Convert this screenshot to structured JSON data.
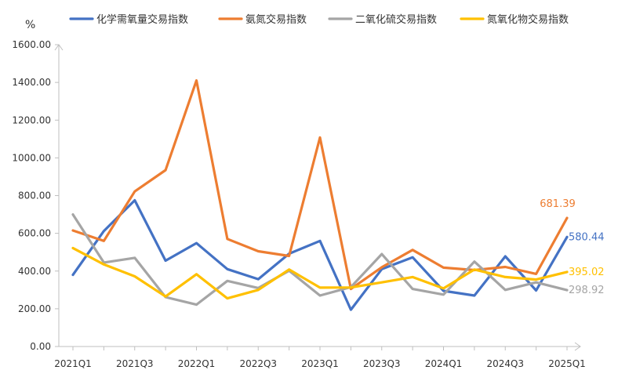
{
  "chart_data": {
    "type": "line",
    "unit_label": "%",
    "x": [
      "2021Q1",
      "2021Q2",
      "2021Q3",
      "2021Q4",
      "2022Q1",
      "2022Q2",
      "2022Q3",
      "2022Q4",
      "2023Q1",
      "2023Q2",
      "2023Q3",
      "2023Q4",
      "2024Q1",
      "2024Q2",
      "2024Q3",
      "2024Q4",
      "2025Q1"
    ],
    "x_tick_labels": [
      "2021Q1",
      "2021Q3",
      "2022Q1",
      "2022Q3",
      "2023Q1",
      "2023Q3",
      "2024Q1",
      "2024Q3",
      "2025Q1"
    ],
    "y_ticks": [
      "0.00",
      "200.00",
      "400.00",
      "600.00",
      "800.00",
      "1000.00",
      "1200.00",
      "1400.00",
      "1600.00"
    ],
    "ylim": [
      0,
      1600
    ],
    "grid": false,
    "legend_position": "top",
    "series": [
      {
        "name": "化学需氧量交易指数",
        "color": "#4472C4",
        "values": [
          380,
          612,
          775,
          455,
          548,
          410,
          357,
          492,
          560,
          195,
          410,
          473,
          295,
          270,
          478,
          297,
          580.44
        ],
        "end_label": "580.44"
      },
      {
        "name": "氨氮交易指数",
        "color": "#ED7D31",
        "values": [
          615,
          560,
          822,
          935,
          1410,
          570,
          505,
          480,
          1108,
          305,
          420,
          512,
          418,
          405,
          422,
          385,
          681.39
        ],
        "end_label": "681.39"
      },
      {
        "name": "二氧化硫交易指数",
        "color": "#A5A5A5",
        "values": [
          700,
          445,
          470,
          262,
          222,
          348,
          310,
          402,
          270,
          315,
          490,
          305,
          275,
          450,
          300,
          340,
          298.92
        ],
        "end_label": "298.92"
      },
      {
        "name": "氮氧化物交易指数",
        "color": "#FFC000",
        "values": [
          522,
          435,
          372,
          265,
          383,
          255,
          300,
          408,
          312,
          313,
          340,
          368,
          308,
          408,
          368,
          355,
          395.02
        ],
        "end_label": "395.02"
      }
    ]
  }
}
